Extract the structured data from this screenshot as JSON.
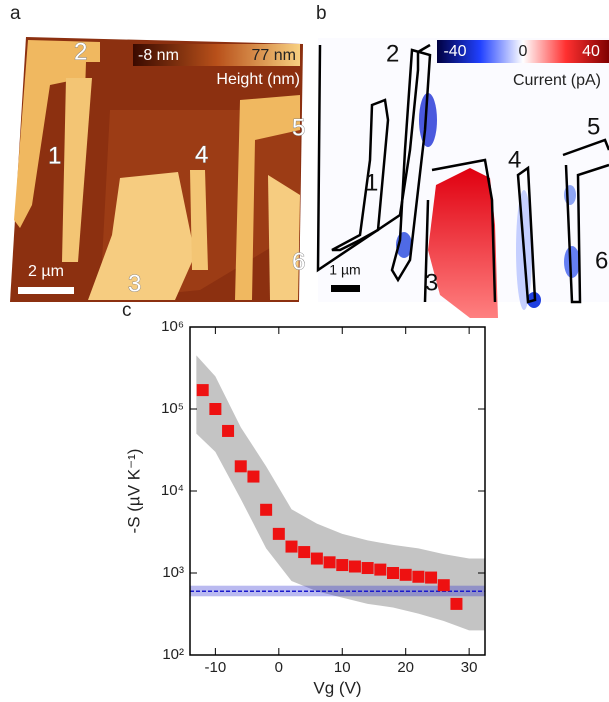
{
  "panel_a": {
    "label": "a",
    "colorbar_min": "-8 nm",
    "colorbar_max": "77 nm",
    "colorbar_title": "Height (nm)",
    "scale_bar": "2 µm",
    "electrodes": [
      "1",
      "2",
      "3",
      "4",
      "5",
      "6"
    ]
  },
  "panel_b": {
    "label": "b",
    "colorbar_ticks": [
      -40,
      0,
      40
    ],
    "colorbar_title": "Current (pA)",
    "scale_bar": "1 µm",
    "electrodes": [
      "1",
      "2",
      "3",
      "4",
      "5",
      "6"
    ]
  },
  "chart_data": {
    "type": "scatter",
    "label": "c",
    "x_label": "Vg (V)",
    "y_label": "-S (µV K⁻¹)",
    "x": [
      -12,
      -10,
      -8,
      -6,
      -4,
      -2,
      0,
      2,
      4,
      6,
      8,
      10,
      12,
      14,
      16,
      18,
      20,
      22,
      24,
      26,
      28
    ],
    "values": [
      170000,
      100000,
      54000,
      20000,
      15000,
      5900,
      3000,
      2100,
      1800,
      1500,
      1350,
      1250,
      1200,
      1150,
      1100,
      1000,
      950,
      900,
      880,
      710,
      420
    ],
    "color": "#ee1111",
    "band": {
      "x": [
        -13,
        -10,
        -6,
        -2,
        2,
        6,
        10,
        14,
        18,
        22,
        26,
        30,
        32.5
      ],
      "upper": [
        450000,
        250000,
        60000,
        20000,
        6000,
        4000,
        3000,
        2500,
        2200,
        2000,
        1700,
        1500,
        1500
      ],
      "lower": [
        50000,
        30000,
        8000,
        2000,
        800,
        600,
        500,
        420,
        380,
        320,
        260,
        200,
        200
      ],
      "color": "#c4c4c4"
    },
    "reference": {
      "value": 600,
      "low": 520,
      "high": 700,
      "color": "#1a1acc"
    },
    "xlim": [
      -14,
      32.5
    ],
    "ylim": [
      100,
      1000000
    ],
    "log_y": true,
    "xticks": [
      -10,
      0,
      10,
      20,
      30
    ],
    "yticks": [
      {
        "value": 100,
        "label": "10²"
      },
      {
        "value": 1000,
        "label": "10³"
      },
      {
        "value": 10000,
        "label": "10⁴"
      },
      {
        "value": 100000,
        "label": "10⁵"
      },
      {
        "value": 1000000,
        "label": "10⁶"
      }
    ]
  }
}
